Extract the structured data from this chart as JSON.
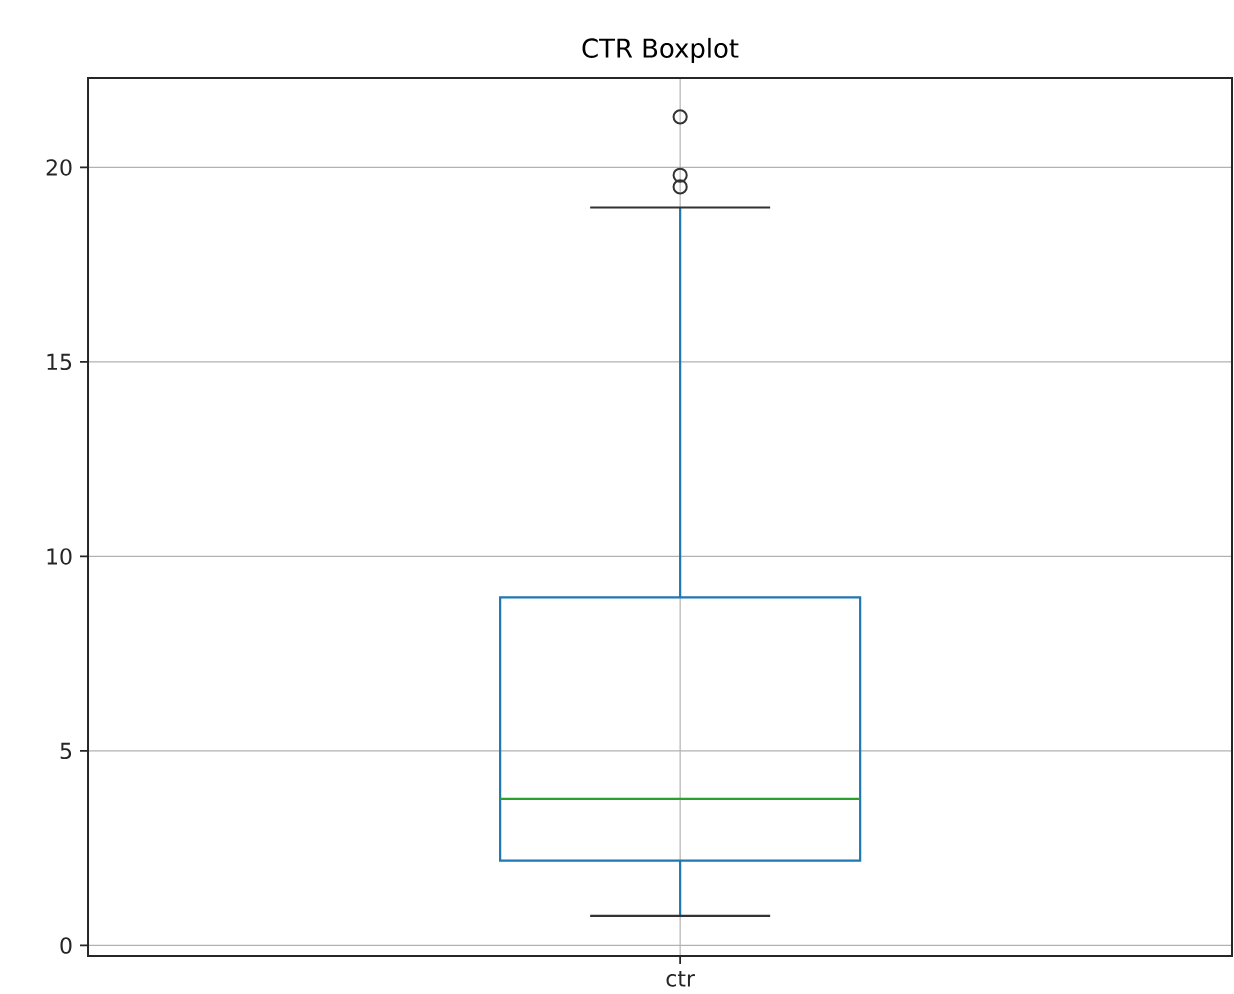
{
  "chart_data": {
    "type": "box",
    "title": "CTR Boxplot",
    "categories": [
      "ctr"
    ],
    "color": "#1f77b4",
    "boxes": [
      {
        "low": 0.76,
        "q1": 2.18,
        "median": 3.77,
        "q3": 8.95,
        "high": 18.97,
        "outliers": [
          19.5,
          19.8,
          21.3
        ]
      }
    ],
    "ylim": [
      -0.27,
      22.3
    ],
    "yticks": [
      0,
      5,
      10,
      15,
      20
    ],
    "grid": true
  }
}
